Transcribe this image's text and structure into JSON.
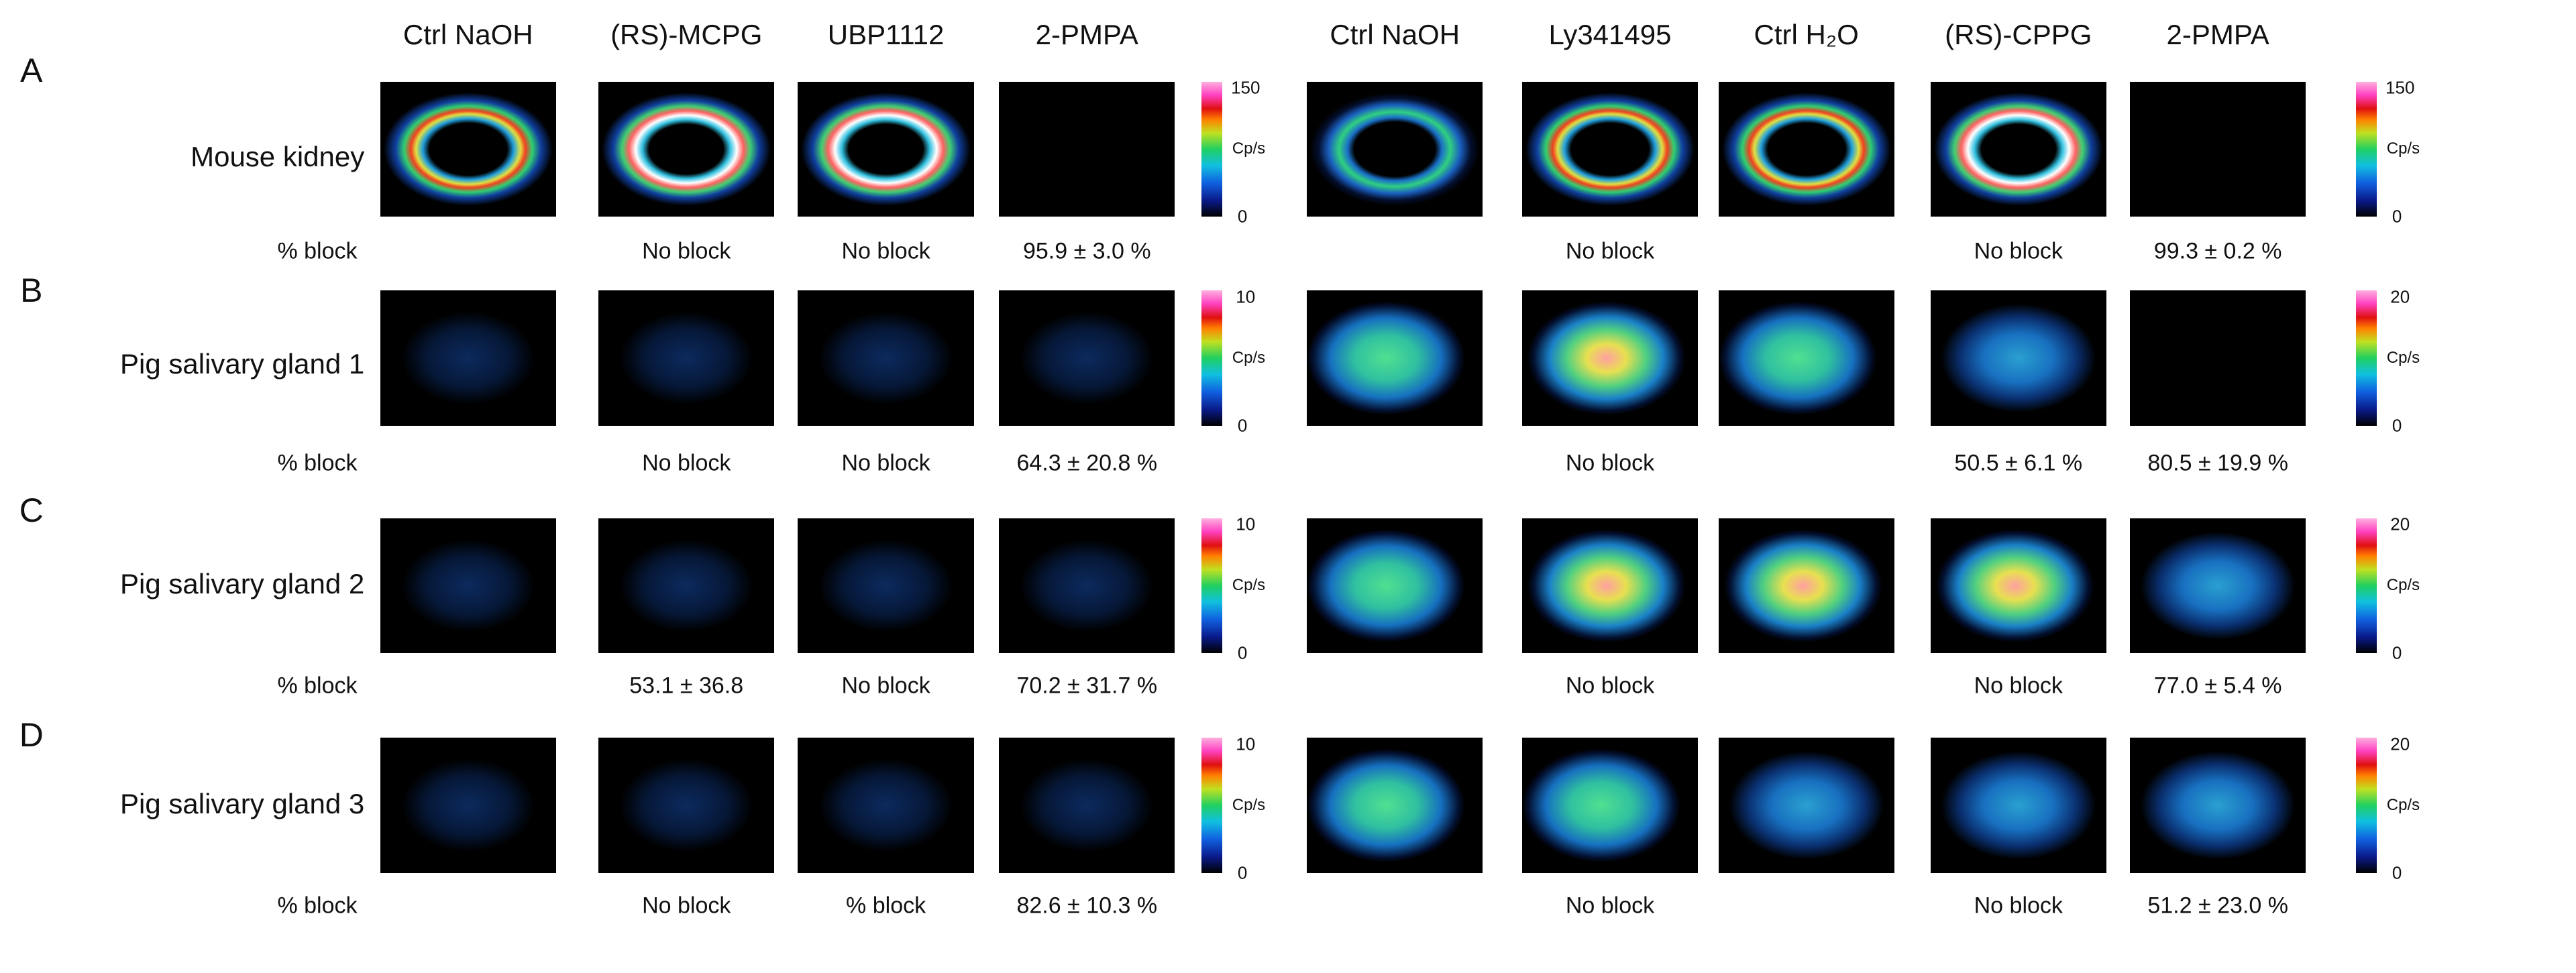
{
  "headers": [
    "Ctrl NaOH",
    "(RS)-MCPG",
    "UBP1112",
    "2-PMPA",
    "Ctrl NaOH",
    "Ly341495",
    "Ctrl H₂O",
    "(RS)-CPPG",
    "2-PMPA"
  ],
  "panels": [
    {
      "letter": "A",
      "label": "Mouse kidney",
      "block_label": "% block",
      "left_scale": {
        "max": "150",
        "unit": "Cp/s",
        "min": "0"
      },
      "right_scale": {
        "max": "150",
        "unit": "Cp/s",
        "min": "0"
      },
      "blocks": [
        null,
        "No block",
        "No block",
        "95.9 ± 3.0 %",
        null,
        "No block",
        null,
        "No block",
        "99.3 ± 0.2 %"
      ]
    },
    {
      "letter": "B",
      "label": "Pig salivary gland 1",
      "block_label": "% block",
      "left_scale": {
        "max": "10",
        "unit": "Cp/s",
        "min": "0"
      },
      "right_scale": {
        "max": "20",
        "unit": "Cp/s",
        "min": "0"
      },
      "blocks": [
        null,
        "No block",
        "No block",
        "64.3 ± 20.8 %",
        null,
        "No block",
        null,
        "50.5 ± 6.1 %",
        "80.5 ± 19.9 %"
      ]
    },
    {
      "letter": "C",
      "label": "Pig salivary gland 2",
      "block_label": "% block",
      "left_scale": {
        "max": "10",
        "unit": "Cp/s",
        "min": "0"
      },
      "right_scale": {
        "max": "20",
        "unit": "Cp/s",
        "min": "0"
      },
      "blocks": [
        null,
        "53.1 ± 36.8",
        "No block",
        "70.2 ± 31.7 %",
        null,
        "No block",
        null,
        "No block",
        "77.0 ± 5.4 %"
      ]
    },
    {
      "letter": "D",
      "label": "Pig salivary gland 3",
      "block_label": "% block",
      "left_scale": {
        "max": "10",
        "unit": "Cp/s",
        "min": "0"
      },
      "right_scale": {
        "max": "20",
        "unit": "Cp/s",
        "min": "0"
      },
      "blocks": [
        null,
        "No block",
        "% block",
        "82.6 ± 10.3 %",
        null,
        "No block",
        null,
        "No block",
        "51.2 ± 23.0 %"
      ]
    }
  ]
}
